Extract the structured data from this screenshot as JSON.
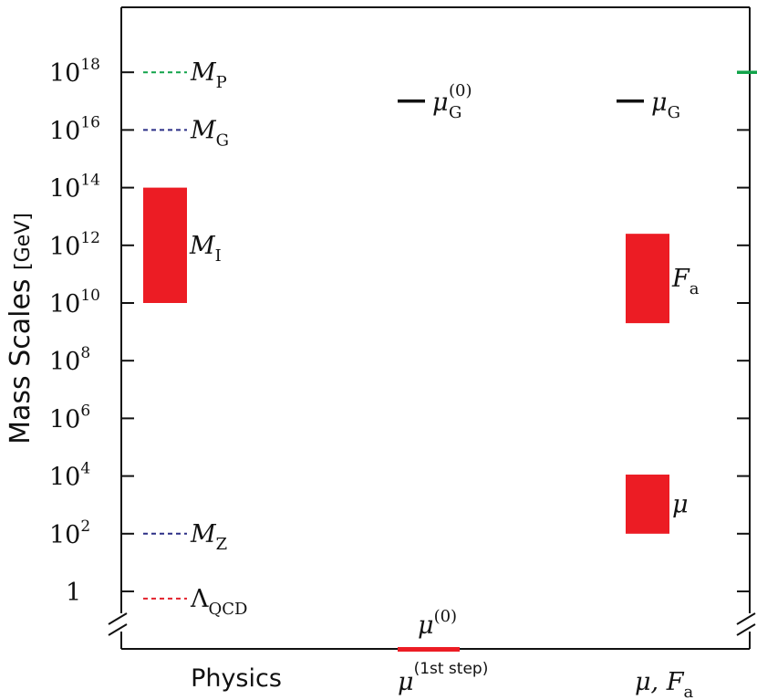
{
  "chart_data": {
    "type": "bar",
    "ylabel": "Mass Scales",
    "yunit": "[GeV]",
    "yscale": "log",
    "ylim_log10": [
      -1,
      20
    ],
    "y_break_at_bottom": true,
    "yticks": [
      {
        "exp": 18,
        "base": "10",
        "sup": "18"
      },
      {
        "exp": 16,
        "base": "10",
        "sup": "16"
      },
      {
        "exp": 14,
        "base": "10",
        "sup": "14"
      },
      {
        "exp": 12,
        "base": "10",
        "sup": "12"
      },
      {
        "exp": 10,
        "base": "10",
        "sup": "10"
      },
      {
        "exp": 8,
        "base": "10",
        "sup": "8"
      },
      {
        "exp": 6,
        "base": "10",
        "sup": "6"
      },
      {
        "exp": 4,
        "base": "10",
        "sup": "4"
      },
      {
        "exp": 2,
        "base": "10",
        "sup": "2"
      },
      {
        "exp": 0,
        "base": "1",
        "sup": ""
      }
    ],
    "categories": [
      {
        "id": "physics",
        "label": "Physics",
        "style": "sans"
      },
      {
        "id": "mu1",
        "label": "μ",
        "sup": "(1st step)",
        "style": "math"
      },
      {
        "id": "muFa",
        "label": "μ, F",
        "sub": "a",
        "style": "math"
      }
    ],
    "dashed_lines": [
      {
        "category": "physics",
        "log10": 18,
        "color": "#11a34a",
        "symbol": "M",
        "sub": "P"
      },
      {
        "category": "physics",
        "log10": 16,
        "color": "#2b2f86",
        "symbol": "M",
        "sub": "G"
      },
      {
        "category": "physics",
        "log10": 2,
        "color": "#2b2f86",
        "symbol": "M",
        "sub": "Z"
      },
      {
        "category": "physics",
        "log10": -0.25,
        "color": "#e3202b",
        "symbol": "Λ",
        "sub": "QCD"
      }
    ],
    "solid_lines": [
      {
        "category": "mu1",
        "log10": 17,
        "color": "#111111",
        "symbol": "μ",
        "sub": "G",
        "sup": "(0)"
      },
      {
        "category": "muFa",
        "log10": 17,
        "color": "#111111",
        "symbol": "μ",
        "sub": "G",
        "sup": ""
      }
    ],
    "bars": [
      {
        "category": "physics",
        "low_log10": 10,
        "high_log10": 14,
        "color": "#ec1c24",
        "symbol": "M",
        "sub": "I"
      },
      {
        "category": "muFa",
        "low_log10": 9.3,
        "high_log10": 12.4,
        "color": "#ec1c24",
        "symbol": "F",
        "sub": "a"
      },
      {
        "category": "muFa",
        "low_log10": 2,
        "high_log10": 4.05,
        "color": "#ec1c24",
        "symbol": "μ",
        "sub": ""
      }
    ],
    "below_break": {
      "category": "mu1",
      "color": "#ec1c24",
      "symbol": "μ",
      "sup": "(0)"
    },
    "right_axis_marker": {
      "log10": 18,
      "color": "#11a34a"
    },
    "grid": false,
    "legend": "none"
  }
}
